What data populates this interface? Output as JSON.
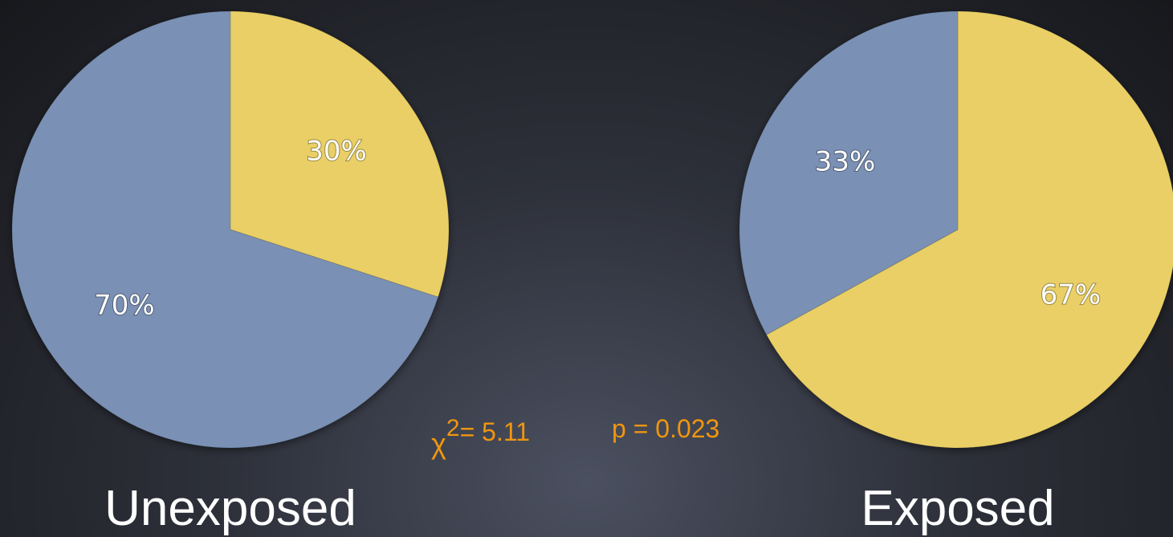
{
  "chart_data": [
    {
      "type": "pie",
      "title": "Unexposed",
      "slices": [
        {
          "label": "30%",
          "value": 30,
          "color": "#e9cf66"
        },
        {
          "label": "70%",
          "value": 70,
          "color": "#7a90b4"
        }
      ]
    },
    {
      "type": "pie",
      "title": "Exposed",
      "slices": [
        {
          "label": "67%",
          "value": 67,
          "color": "#e9cf66"
        },
        {
          "label": "33%",
          "value": 33,
          "color": "#7a90b4"
        }
      ]
    }
  ],
  "stats": {
    "chi_symbol": "χ",
    "chi_exponent": "2",
    "chi_value": "= 5.11",
    "p_value": "p = 0.023"
  },
  "colors": {
    "stat_text": "#f0960e",
    "label_text": "#ffffff"
  }
}
